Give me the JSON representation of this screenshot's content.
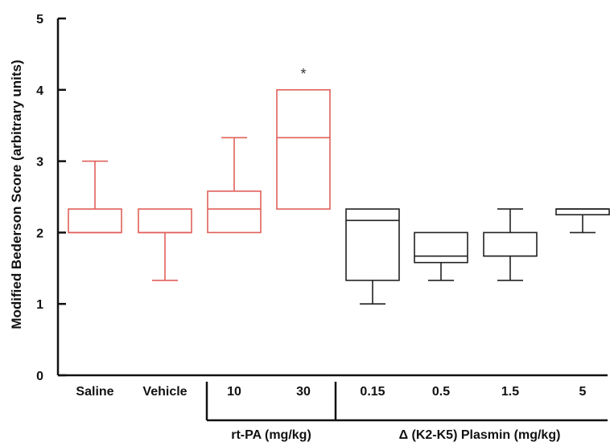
{
  "chart_data": {
    "type": "box",
    "ylabel": "Modified Bederson Score (arbitrary units)",
    "ylim": [
      0,
      5
    ],
    "yticks": [
      0,
      1,
      2,
      3,
      4,
      5
    ],
    "categories": [
      "Saline",
      "Vehicle",
      "10",
      "30",
      "0.15",
      "0.5",
      "1.5",
      "5"
    ],
    "boxes": [
      {
        "label": "Saline",
        "min": 2.0,
        "q1": 2.0,
        "median": 2.0,
        "q3": 2.33,
        "max": 3.0,
        "color": "#e0605a"
      },
      {
        "label": "Vehicle",
        "min": 1.33,
        "q1": 2.0,
        "median": 2.0,
        "q3": 2.33,
        "max": 2.33,
        "color": "#e0605a"
      },
      {
        "label": "10",
        "min": 2.0,
        "q1": 2.0,
        "median": 2.33,
        "q3": 2.58,
        "max": 3.33,
        "color": "#e0605a"
      },
      {
        "label": "30",
        "min": 2.33,
        "q1": 2.33,
        "median": 3.33,
        "q3": 4.0,
        "max": 4.0,
        "color": "#e0605a",
        "annotation": "*"
      },
      {
        "label": "0.15",
        "min": 1.0,
        "q1": 1.33,
        "median": 2.17,
        "q3": 2.33,
        "max": 2.33,
        "color": "#222222"
      },
      {
        "label": "0.5",
        "min": 1.33,
        "q1": 1.58,
        "median": 1.67,
        "q3": 2.0,
        "max": 2.0,
        "color": "#222222"
      },
      {
        "label": "1.5",
        "min": 1.33,
        "q1": 1.67,
        "median": 1.67,
        "q3": 2.0,
        "max": 2.33,
        "color": "#222222"
      },
      {
        "label": "5",
        "min": 2.0,
        "q1": 2.25,
        "median": 2.33,
        "q3": 2.33,
        "max": 2.33,
        "color": "#222222"
      }
    ],
    "groups": [
      {
        "label": "rt-PA (mg/kg)",
        "from": 2,
        "to": 3
      },
      {
        "label": "Δ (K2-K5) Plasmin (mg/kg)",
        "from": 4,
        "to": 7
      }
    ]
  }
}
